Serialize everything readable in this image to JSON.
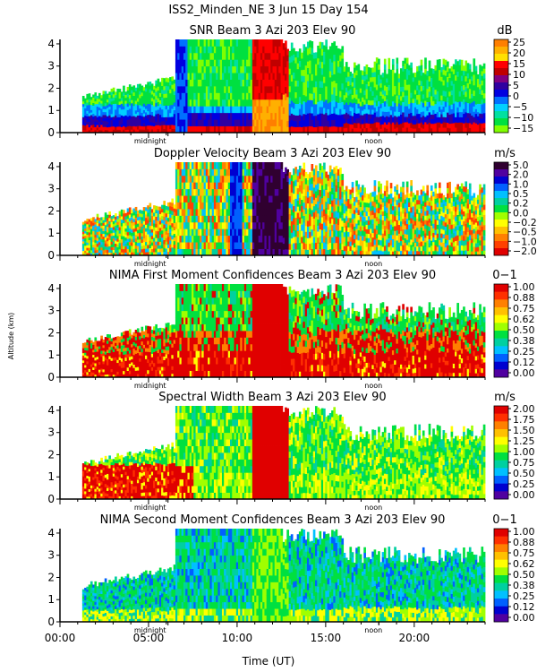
{
  "header": {
    "title": "ISS2_Minden_NE    3 Jun 15 Day 154"
  },
  "ylabel": "Altitude (km)",
  "xlabel": "Time (UT)",
  "x_ticks": [
    "00:00",
    "05:00",
    "10:00",
    "15:00",
    "20:00"
  ],
  "x_tick_hours": [
    0,
    5,
    10,
    15,
    20
  ],
  "y_ticks": [
    "0",
    "1",
    "2",
    "3",
    "4"
  ],
  "markers": {
    "midnight_label": "midnight",
    "midnight_hour": 6.1,
    "noon_label": "noon",
    "noon_hour": 18.0
  },
  "chart_data": [
    {
      "type": "heatmap",
      "title": "SNR Beam 3 Azi 203 Elev 90",
      "unit": "dB",
      "colorbar_labels": [
        "25",
        "20",
        "15",
        "10",
        "5",
        "0",
        "−5",
        "−10",
        "−15"
      ],
      "colorbar_colors": [
        "#ff7f00",
        "#ffb000",
        "#ffe000",
        "#ff0000",
        "#c00000",
        "#800080",
        "#3000a0",
        "#0000e0",
        "#0070ff",
        "#00d0ff",
        "#00e0a0",
        "#00e040",
        "#80ff00"
      ],
      "xlim": [
        0,
        24
      ],
      "ylim": [
        0,
        4.2
      ]
    },
    {
      "type": "heatmap",
      "title": "Doppler Velocity Beam 3 Azi 203 Elev 90",
      "unit": "m/s",
      "colorbar_labels": [
        "5.0",
        "2.0",
        "1.0",
        "0.5",
        "0.2",
        "0.0",
        "−0.2",
        "−0.5",
        "−1.0",
        "−2.0"
      ],
      "colorbar_colors": [
        "#300030",
        "#5000a0",
        "#0000d0",
        "#0060ff",
        "#00c0ff",
        "#00d0a0",
        "#00e040",
        "#a0ff00",
        "#ffff00",
        "#ffc000",
        "#ff8000",
        "#ff4000",
        "#e00000"
      ],
      "xlim": [
        0,
        24
      ],
      "ylim": [
        0,
        4.2
      ]
    },
    {
      "type": "heatmap",
      "title": "NIMA First Moment Confidences Beam 3 Azi 203 Elev 90",
      "unit": "0−1",
      "colorbar_labels": [
        "1.00",
        "0.88",
        "0.75",
        "0.62",
        "0.50",
        "0.38",
        "0.25",
        "0.12",
        "0.00"
      ],
      "colorbar_colors": [
        "#e00000",
        "#ff3000",
        "#ff8000",
        "#ffc000",
        "#ffff00",
        "#a0ff00",
        "#00e040",
        "#00d0a0",
        "#00c0ff",
        "#0060ff",
        "#0000d0",
        "#5000a0"
      ],
      "xlim": [
        0,
        24
      ],
      "ylim": [
        0,
        4.2
      ]
    },
    {
      "type": "heatmap",
      "title": "Spectral Width Beam 3 Azi 203 Elev 90",
      "unit": "m/s",
      "colorbar_labels": [
        "2.00",
        "1.75",
        "1.50",
        "1.25",
        "1.00",
        "0.75",
        "0.50",
        "0.25",
        "0.00"
      ],
      "colorbar_colors": [
        "#e00000",
        "#ff3000",
        "#ff8000",
        "#ffc000",
        "#ffff00",
        "#a0ff00",
        "#00e040",
        "#00d0a0",
        "#00c0ff",
        "#0060ff",
        "#0000d0",
        "#5000a0"
      ],
      "xlim": [
        0,
        24
      ],
      "ylim": [
        0,
        4.2
      ]
    },
    {
      "type": "heatmap",
      "title": "NIMA Second Moment Confidences Beam 3 Azi 203 Elev 90",
      "unit": "0−1",
      "colorbar_labels": [
        "1.00",
        "0.88",
        "0.75",
        "0.62",
        "0.50",
        "0.38",
        "0.25",
        "0.12",
        "0.00"
      ],
      "colorbar_colors": [
        "#e00000",
        "#ff3000",
        "#ff8000",
        "#ffc000",
        "#ffff00",
        "#a0ff00",
        "#00e040",
        "#00d0a0",
        "#00c0ff",
        "#0060ff",
        "#0000d0",
        "#5000a0"
      ],
      "xlim": [
        0,
        24
      ],
      "ylim": [
        0,
        4.2
      ]
    }
  ]
}
